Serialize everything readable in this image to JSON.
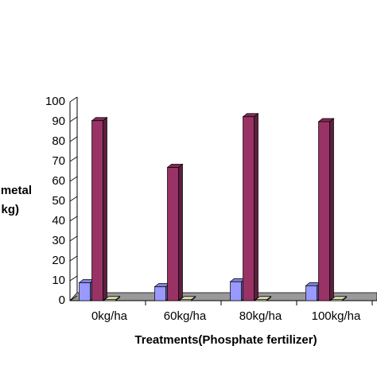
{
  "chart_data": {
    "type": "bar3d",
    "categories": [
      "0kg/ha",
      "60kg/ha",
      "80kg/ha",
      "100kg/ha"
    ],
    "series": [
      {
        "color": "#9999ff",
        "values": [
          9,
          7,
          9.5,
          7.5
        ]
      },
      {
        "color": "#993366",
        "values": [
          90.5,
          67,
          92.5,
          90
        ]
      },
      {
        "color": "#ffffcc",
        "values": [
          0.5,
          0.5,
          0.5,
          0.5
        ]
      }
    ],
    "ylim": [
      0,
      100
    ],
    "yticks": [
      0,
      10,
      20,
      30,
      40,
      50,
      60,
      70,
      80,
      90,
      100
    ],
    "ylabel": [
      "metal",
      "kg)"
    ],
    "xlabel": "Treatments(Phosphate fertilizer)",
    "grid": false
  }
}
